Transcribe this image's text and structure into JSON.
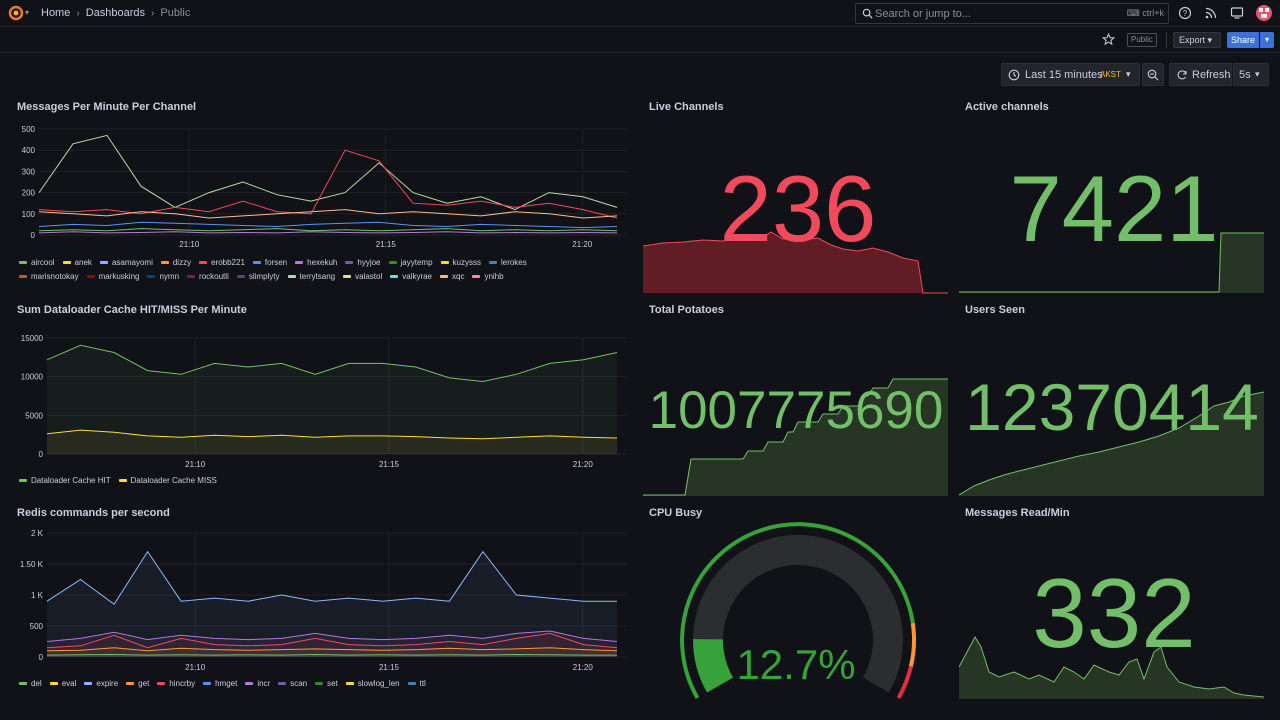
{
  "breadcrumb": [
    "Home",
    "Dashboards",
    "Public"
  ],
  "search": {
    "placeholder": "Search or jump to...",
    "shortcut": "ctrl+k"
  },
  "toolbar": {
    "public_badge": "Public",
    "export_label": "Export",
    "share_label": "Share"
  },
  "time_picker": {
    "label": "Last 15 minutes",
    "timezone": "AKST",
    "refresh_label": "Refresh",
    "interval": "5s"
  },
  "colors": {
    "background": "#111217",
    "green": "#73bf69",
    "red": "#f2495c",
    "share_blue": "#3d71d9"
  },
  "panels": {
    "messages_per_minute": {
      "title": "Messages Per Minute Per Channel",
      "legend": [
        {
          "name": "aircool",
          "color": "#73bf69"
        },
        {
          "name": "anek",
          "color": "#fade2a"
        },
        {
          "name": "asamayomi",
          "color": "#8ab8ff"
        },
        {
          "name": "dizzy",
          "color": "#ff9830"
        },
        {
          "name": "erobb221",
          "color": "#f2495c"
        },
        {
          "name": "forsen",
          "color": "#5794f2"
        },
        {
          "name": "hexekuh",
          "color": "#b877d9"
        },
        {
          "name": "hyyjoe",
          "color": "#705da0"
        },
        {
          "name": "jayytemp",
          "color": "#37872d"
        },
        {
          "name": "kuzysss",
          "color": "#fade2a"
        },
        {
          "name": "lerokes",
          "color": "#447ebc"
        },
        {
          "name": "marisnotokay",
          "color": "#c15c17"
        },
        {
          "name": "markusking",
          "color": "#890f02"
        },
        {
          "name": "nymn",
          "color": "#0a437c"
        },
        {
          "name": "rockoutli",
          "color": "#6d1f62"
        },
        {
          "name": "slimplyty",
          "color": "#584477"
        },
        {
          "name": "terrytsang",
          "color": "#b7dbab"
        },
        {
          "name": "valastol",
          "color": "#f4d598"
        },
        {
          "name": "valkyrae",
          "color": "#70dbed"
        },
        {
          "name": "xqc",
          "color": "#f9ba8f"
        },
        {
          "name": "ynihb",
          "color": "#f29191"
        }
      ]
    },
    "dataloader": {
      "title": "Sum Dataloader Cache HIT/MISS Per Minute",
      "legend": [
        {
          "name": "Dataloader Cache HIT",
          "color": "#73bf69"
        },
        {
          "name": "Dataloader Cache MISS",
          "color": "#fade2a"
        }
      ]
    },
    "redis": {
      "title": "Redis commands per second",
      "legend": [
        {
          "name": "del",
          "color": "#73bf69"
        },
        {
          "name": "eval",
          "color": "#fade2a"
        },
        {
          "name": "expire",
          "color": "#8ab8ff"
        },
        {
          "name": "get",
          "color": "#ff9830"
        },
        {
          "name": "hincrby",
          "color": "#f2495c"
        },
        {
          "name": "hmget",
          "color": "#5794f2"
        },
        {
          "name": "incr",
          "color": "#b877d9"
        },
        {
          "name": "scan",
          "color": "#705da0"
        },
        {
          "name": "set",
          "color": "#37872d"
        },
        {
          "name": "slowlog_len",
          "color": "#fade2a"
        },
        {
          "name": "ttl",
          "color": "#447ebc"
        }
      ]
    },
    "live_channels": {
      "title": "Live Channels",
      "value": "236"
    },
    "active_channels": {
      "title": "Active channels",
      "value": "7421"
    },
    "total_potatoes": {
      "title": "Total Potatoes",
      "value": "1007775690"
    },
    "users_seen": {
      "title": "Users Seen",
      "value": "12370414"
    },
    "cpu_busy": {
      "title": "CPU Busy",
      "value": "12.7%",
      "percent": 12.7
    },
    "messages_read": {
      "title": "Messages Read/Min",
      "value": "332"
    }
  },
  "chart_data": [
    {
      "type": "line",
      "title": "Messages Per Minute Per Channel",
      "x_ticks": [
        "21:10",
        "21:15",
        "21:20"
      ],
      "y_ticks": [
        "0",
        "100",
        "200",
        "300",
        "400",
        "500"
      ],
      "ylim": [
        0,
        500
      ],
      "x": [
        "21:05",
        "21:06",
        "21:07",
        "21:08",
        "21:09",
        "21:10",
        "21:11",
        "21:12",
        "21:13",
        "21:14",
        "21:15",
        "21:16",
        "21:17",
        "21:18",
        "21:19",
        "21:20",
        "21:21",
        "21:22"
      ],
      "series": [
        {
          "name": "terrytsang",
          "color": "#b7dbab",
          "values": [
            200,
            430,
            470,
            230,
            130,
            200,
            250,
            190,
            160,
            200,
            340,
            200,
            150,
            180,
            120,
            200,
            180,
            130
          ]
        },
        {
          "name": "erobb221",
          "color": "#f2495c",
          "values": [
            120,
            110,
            120,
            100,
            130,
            110,
            160,
            110,
            100,
            400,
            350,
            150,
            140,
            160,
            130,
            150,
            120,
            80
          ]
        },
        {
          "name": "xqc",
          "color": "#f9ba8f",
          "values": [
            110,
            100,
            90,
            110,
            100,
            80,
            90,
            100,
            110,
            120,
            100,
            110,
            100,
            90,
            110,
            100,
            80,
            90
          ]
        },
        {
          "name": "forsen",
          "color": "#5794f2",
          "values": [
            40,
            50,
            45,
            60,
            55,
            50,
            45,
            40,
            50,
            55,
            60,
            45,
            40,
            50,
            45,
            40,
            35,
            40
          ]
        },
        {
          "name": "aircool",
          "color": "#73bf69",
          "values": [
            20,
            25,
            20,
            30,
            25,
            20,
            25,
            30,
            20,
            25,
            20,
            25,
            30,
            20,
            25,
            20,
            25,
            20
          ]
        },
        {
          "name": "hexekuh",
          "color": "#b877d9",
          "values": [
            10,
            15,
            10,
            12,
            15,
            10,
            12,
            10,
            15,
            12,
            10,
            12,
            15,
            10,
            12,
            10,
            12,
            10
          ]
        }
      ]
    },
    {
      "type": "area",
      "title": "Sum Dataloader Cache HIT/MISS Per Minute",
      "x_ticks": [
        "21:10",
        "21:15",
        "21:20"
      ],
      "y_ticks": [
        "0",
        "5000",
        "10000",
        "15000"
      ],
      "ylim": [
        0,
        16000
      ],
      "x": [
        "21:05",
        "21:06",
        "21:07",
        "21:08",
        "21:09",
        "21:10",
        "21:11",
        "21:12",
        "21:13",
        "21:14",
        "21:15",
        "21:16",
        "21:17",
        "21:18",
        "21:19",
        "21:20",
        "21:21",
        "21:22"
      ],
      "series": [
        {
          "name": "Dataloader Cache HIT",
          "color": "#73bf69",
          "values": [
            13000,
            15000,
            14000,
            11500,
            11000,
            12500,
            12000,
            12500,
            11000,
            12500,
            12500,
            12000,
            10500,
            10000,
            11000,
            12500,
            13000,
            14000
          ]
        },
        {
          "name": "Dataloader Cache MISS",
          "color": "#fade2a",
          "values": [
            2800,
            3300,
            3000,
            2500,
            2300,
            2600,
            2400,
            2600,
            2300,
            2500,
            2500,
            2400,
            2200,
            2100,
            2300,
            2500,
            2300,
            2200
          ]
        }
      ]
    },
    {
      "type": "area",
      "title": "Redis commands per second",
      "x_ticks": [
        "21:10",
        "21:15",
        "21:20"
      ],
      "y_ticks": [
        "0",
        "500",
        "1 K",
        "1.50 K",
        "2 K"
      ],
      "ylim": [
        0,
        2000
      ],
      "x": [
        "21:05",
        "21:06",
        "21:07",
        "21:08",
        "21:09",
        "21:10",
        "21:11",
        "21:12",
        "21:13",
        "21:14",
        "21:15",
        "21:16",
        "21:17",
        "21:18",
        "21:19",
        "21:20",
        "21:21",
        "21:22"
      ],
      "series": [
        {
          "name": "expire",
          "color": "#8ab8ff",
          "values": [
            900,
            1250,
            850,
            1700,
            900,
            950,
            900,
            1000,
            900,
            950,
            900,
            950,
            900,
            1700,
            1000,
            950,
            900,
            900
          ]
        },
        {
          "name": "incr",
          "color": "#b877d9",
          "values": [
            250,
            300,
            400,
            280,
            350,
            300,
            280,
            300,
            380,
            300,
            280,
            300,
            350,
            300,
            380,
            420,
            300,
            250
          ]
        },
        {
          "name": "hincrby",
          "color": "#f2495c",
          "values": [
            150,
            180,
            350,
            150,
            300,
            200,
            180,
            200,
            300,
            200,
            180,
            200,
            250,
            200,
            300,
            380,
            200,
            150
          ]
        },
        {
          "name": "get",
          "color": "#ff9830",
          "values": [
            100,
            110,
            150,
            100,
            140,
            120,
            110,
            120,
            130,
            120,
            110,
            120,
            140,
            120,
            130,
            150,
            120,
            100
          ]
        },
        {
          "name": "del",
          "color": "#73bf69",
          "values": [
            30,
            35,
            40,
            30,
            35,
            30,
            35,
            30,
            40,
            30,
            35,
            30,
            35,
            30,
            40,
            35,
            30,
            30
          ]
        }
      ]
    }
  ]
}
